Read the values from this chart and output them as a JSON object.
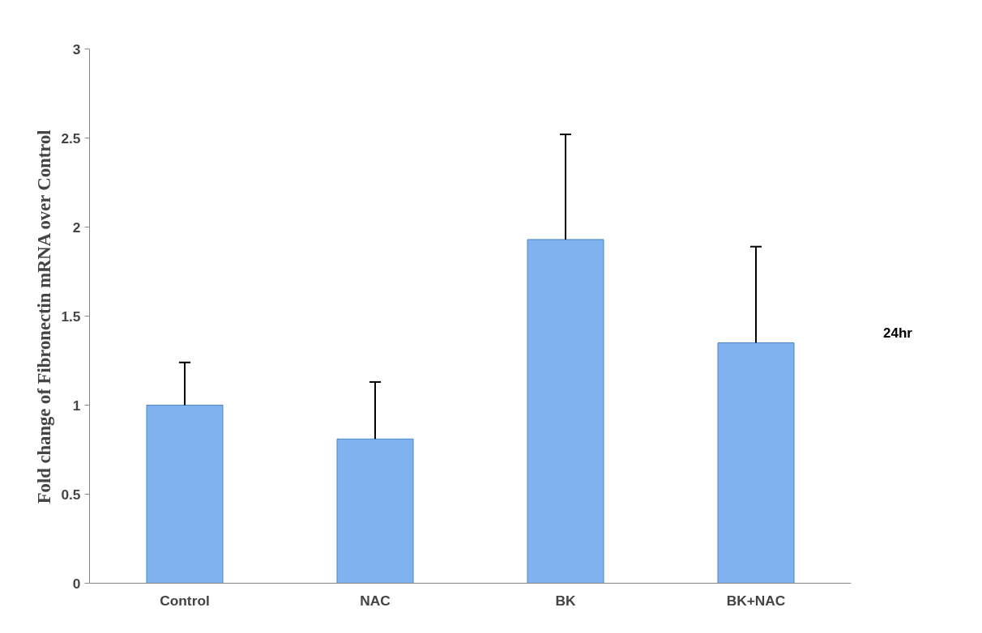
{
  "chart_data": {
    "type": "bar",
    "ylabel": "Fold change of Fibronectin mRNA over Control",
    "categories": [
      "Control",
      "NAC",
      "BK",
      "BK+NAC"
    ],
    "values": [
      1.0,
      0.81,
      1.93,
      1.35
    ],
    "errors": [
      [
        1.0,
        1.24
      ],
      [
        0.81,
        1.13
      ],
      [
        1.93,
        2.52
      ],
      [
        1.35,
        1.89
      ]
    ],
    "color": "#7fb2ee",
    "ylim": [
      0,
      3
    ],
    "yticks": [
      0,
      0.5,
      1,
      1.5,
      2,
      2.5,
      3
    ],
    "annotations": [
      "24hr"
    ],
    "grid": false
  }
}
